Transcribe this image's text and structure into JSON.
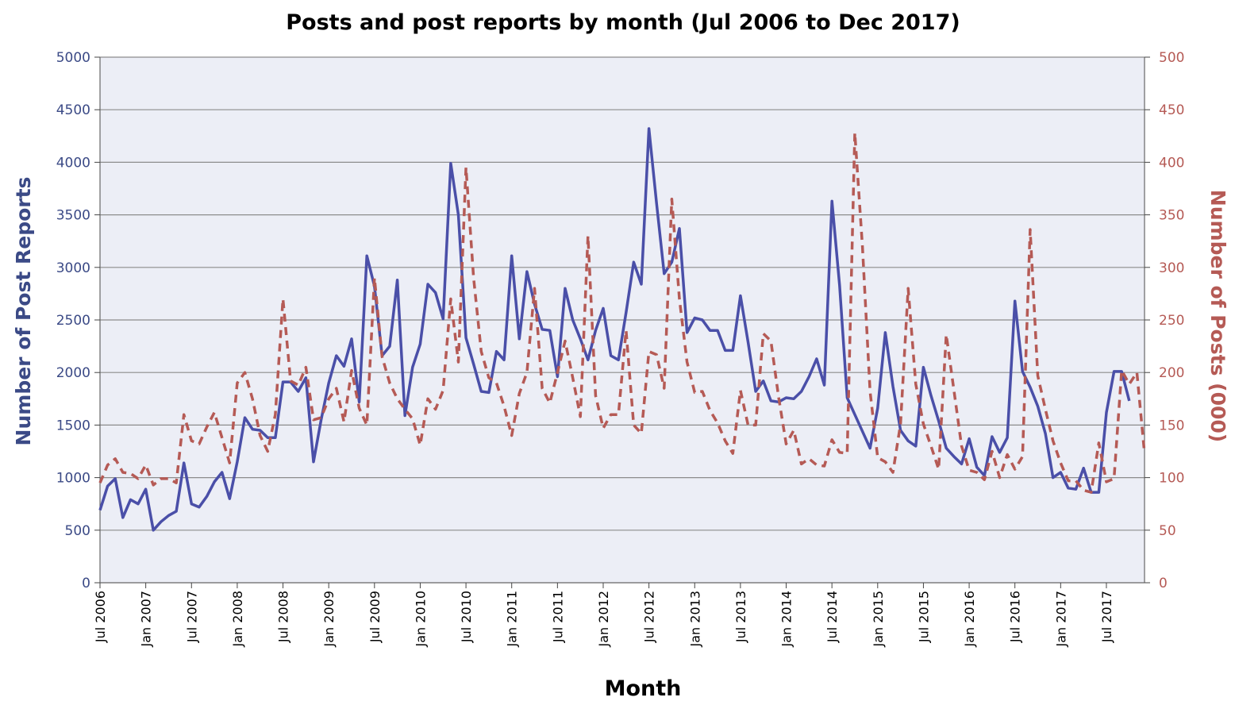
{
  "chart_data": {
    "type": "line",
    "title": "Posts and post reports by month (Jul 2006 to Dec 2017)",
    "xlabel": "Month",
    "ylabel_left": "Number of Post Reports",
    "ylabel_right": "Number of Posts (000)",
    "ylim_left": [
      0,
      5000
    ],
    "ylim_right": [
      0,
      500
    ],
    "yticks_left": [
      0,
      500,
      1000,
      1500,
      2000,
      2500,
      3000,
      3500,
      4000,
      4500,
      5000
    ],
    "yticks_right": [
      0,
      50,
      100,
      150,
      200,
      250,
      300,
      350,
      400,
      450,
      500
    ],
    "x_tick_labels": [
      "Jul 2006",
      "Jan 2007",
      "Jul 2007",
      "Jan 2008",
      "Jul 2008",
      "Jan 2009",
      "Jul 2009",
      "Jan 2010",
      "Jul 2010",
      "Jan 2011",
      "Jul 2011",
      "Jan 2012",
      "Jul 2012",
      "Jan 2013",
      "Jul 2013",
      "Jan 2014",
      "Jul 2014",
      "Jan 2015",
      "Jul 2015",
      "Jan 2016",
      "Jul 2016",
      "Jan 2017",
      "Jul 2017"
    ],
    "x_start": "2006-07",
    "x_end": "2017-12",
    "grid": true,
    "colors": {
      "reports": "#4a4fa8",
      "posts": "#b55a55",
      "plot_bg": "#eceef6",
      "grid": "#8c8c8c"
    },
    "series": [
      {
        "axis": "left",
        "style": "solid",
        "values": [
          690,
          920,
          990,
          620,
          790,
          750,
          890,
          500,
          580,
          640,
          680,
          1140,
          750,
          720,
          820,
          960,
          1050,
          800,
          1150,
          1570,
          1460,
          1450,
          1380,
          1380,
          1910,
          1910,
          1820,
          1950,
          1150,
          1550,
          1900,
          2160,
          2060,
          2320,
          1720,
          3110,
          2820,
          2160,
          2250,
          2880,
          1590,
          2050,
          2270,
          2840,
          2760,
          2510,
          3990,
          3500,
          2330,
          2080,
          1820,
          1810,
          2200,
          2120,
          3110,
          2320,
          2960,
          2650,
          2410,
          2400,
          1960,
          2800,
          2500,
          2320,
          2120,
          2400,
          2610,
          2160,
          2120,
          2570,
          3050,
          2840,
          4320,
          3610,
          2940,
          3050,
          3370,
          2380,
          2520,
          2500,
          2400,
          2400,
          2210,
          2210,
          2730,
          2290,
          1820,
          1920,
          1730,
          1720,
          1760,
          1750,
          1820,
          1960,
          2130,
          1880,
          3630,
          2830,
          1760,
          1600,
          1440,
          1280,
          1660,
          2380,
          1870,
          1450,
          1350,
          1300,
          2050,
          1780,
          1540,
          1280,
          1200,
          1130,
          1370,
          1100,
          1020,
          1390,
          1240,
          1380,
          2680,
          2010,
          1860,
          1680,
          1420,
          1000,
          1050,
          900,
          890,
          1090,
          860,
          860,
          1620,
          2010,
          2010,
          1730
        ]
      },
      {
        "axis": "right",
        "style": "dashed",
        "values": [
          95,
          112,
          118,
          105,
          104,
          99,
          112,
          93,
          99,
          99,
          95,
          160,
          135,
          132,
          148,
          162,
          138,
          114,
          190,
          200,
          175,
          140,
          125,
          160,
          270,
          192,
          188,
          205,
          155,
          157,
          175,
          185,
          153,
          202,
          166,
          150,
          290,
          215,
          190,
          175,
          165,
          156,
          131,
          175,
          165,
          183,
          270,
          210,
          395,
          290,
          220,
          195,
          190,
          168,
          140,
          180,
          200,
          280,
          185,
          171,
          200,
          230,
          195,
          158,
          330,
          178,
          147,
          160,
          160,
          240,
          150,
          142,
          220,
          217,
          185,
          365,
          270,
          210,
          181,
          182,
          164,
          152,
          135,
          123,
          183,
          150,
          150,
          237,
          230,
          177,
          132,
          145,
          113,
          118,
          112,
          111,
          136,
          124,
          123,
          428,
          320,
          182,
          119,
          115,
          105,
          151,
          280,
          189,
          151,
          130,
          108,
          236,
          183,
          130,
          107,
          105,
          98,
          125,
          100,
          122,
          108,
          120,
          336,
          197,
          165,
          135,
          114,
          97,
          97,
          88,
          86,
          133,
          96,
          99,
          202,
          189,
          200,
          123
        ]
      }
    ]
  }
}
